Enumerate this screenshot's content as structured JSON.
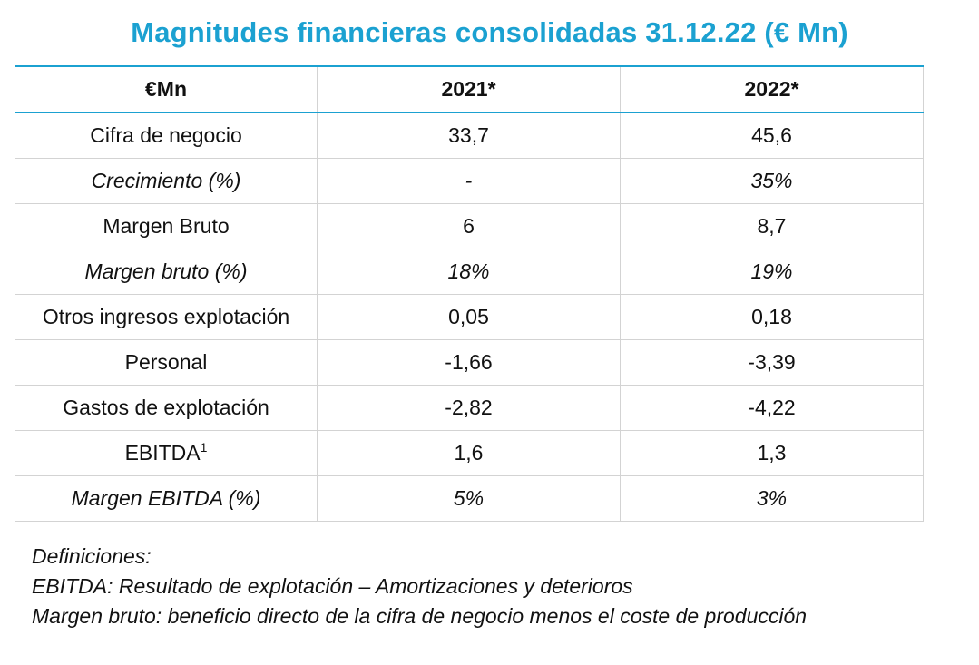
{
  "title": "Magnitudes financieras consolidadas 31.12.22 (€ Mn)",
  "table": {
    "headers": [
      "€Mn",
      "2021*",
      "2022*"
    ],
    "rows": [
      {
        "label": "Cifra de negocio",
        "v2021": "33,7",
        "v2022": "45,6",
        "italic": false
      },
      {
        "label": "Crecimiento (%)",
        "v2021": "-",
        "v2022": "35%",
        "italic": true
      },
      {
        "label": "Margen Bruto",
        "v2021": "6",
        "v2022": "8,7",
        "italic": false
      },
      {
        "label": "Margen bruto (%)",
        "v2021": "18%",
        "v2022": "19%",
        "italic": true
      },
      {
        "label": "Otros ingresos explotación",
        "v2021": "0,05",
        "v2022": "0,18",
        "italic": false
      },
      {
        "label": "Personal",
        "v2021": "-1,66",
        "v2022": "-3,39",
        "italic": false
      },
      {
        "label": "Gastos de explotación",
        "v2021": "-2,82",
        "v2022": "-4,22",
        "italic": false
      },
      {
        "label": "EBITDA",
        "footnote": "1",
        "v2021": "1,6",
        "v2022": "1,3",
        "italic": false
      },
      {
        "label": "Margen EBITDA (%)",
        "v2021": "5%",
        "v2022": "3%",
        "italic": true
      }
    ]
  },
  "definitions": {
    "heading": "Definiciones:",
    "items": [
      "EBITDA: Resultado de explotación – Amortizaciones y deterioros",
      "Margen bruto: beneficio directo de la cifra de negocio menos el coste de producción"
    ]
  },
  "colors": {
    "accent": "#1BA1D1",
    "grid": "#d3d3d3"
  }
}
